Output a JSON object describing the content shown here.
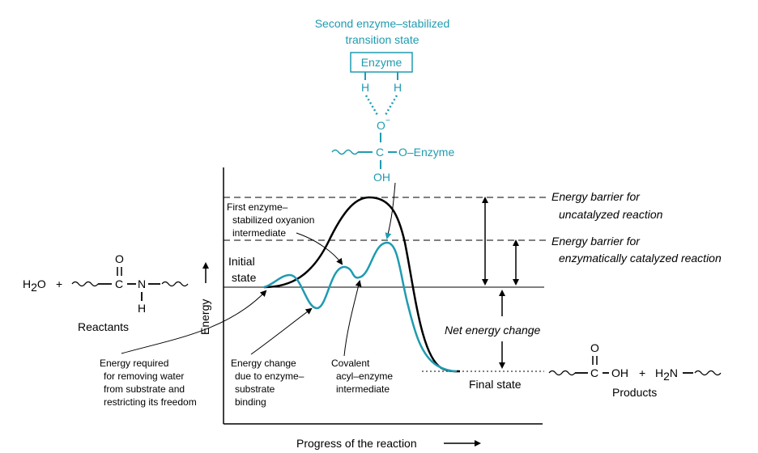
{
  "colors": {
    "teal": "#1f9bb0",
    "black": "#000000"
  },
  "transition_state": {
    "title_line1": "Second enzyme–stabilized",
    "title_line2": "transition state",
    "enzyme_box": "Enzyme",
    "h_left": "H",
    "h_right": "H",
    "oxygen": "O",
    "oxygen_charge": "−",
    "carbon": "C",
    "o_enzyme": "O–Enzyme",
    "oh": "OH"
  },
  "reactants": {
    "water": "H",
    "water_sub": "2",
    "water_o": "O",
    "plus": "+",
    "carbonyl_o": "O",
    "carbon": "C",
    "nitrogen": "N",
    "h": "H",
    "label": "Reactants"
  },
  "products": {
    "carbonyl_o": "O",
    "carbon": "C",
    "oh": "OH",
    "plus": "+",
    "amine_h": "H",
    "amine_sub": "2",
    "amine_n": "N",
    "label": "Products"
  },
  "labels": {
    "energy_axis": "Energy",
    "progress_axis": "Progress of the reaction",
    "initial_state_1": "Initial",
    "initial_state_2": "state",
    "final_state": "Final state",
    "first_intermediate_1": "First enzyme–",
    "first_intermediate_2": "stabilized oxyanion",
    "first_intermediate_3": "intermediate",
    "barrier_uncat_1": "Energy barrier for",
    "barrier_uncat_2": "uncatalyzed reaction",
    "barrier_cat_1": "Energy barrier for",
    "barrier_cat_2": "enzymatically catalyzed reaction",
    "net_energy": "Net energy change",
    "water_removal_1": "Energy required",
    "water_removal_2": "for removing water",
    "water_removal_3": "from substrate and",
    "water_removal_4": "restricting its freedom",
    "binding_1": "Energy change",
    "binding_2": "due to enzyme–",
    "binding_3": "substrate",
    "binding_4": "binding",
    "acyl_1": "Covalent",
    "acyl_2": "acyl–enzyme",
    "acyl_3": "intermediate"
  }
}
